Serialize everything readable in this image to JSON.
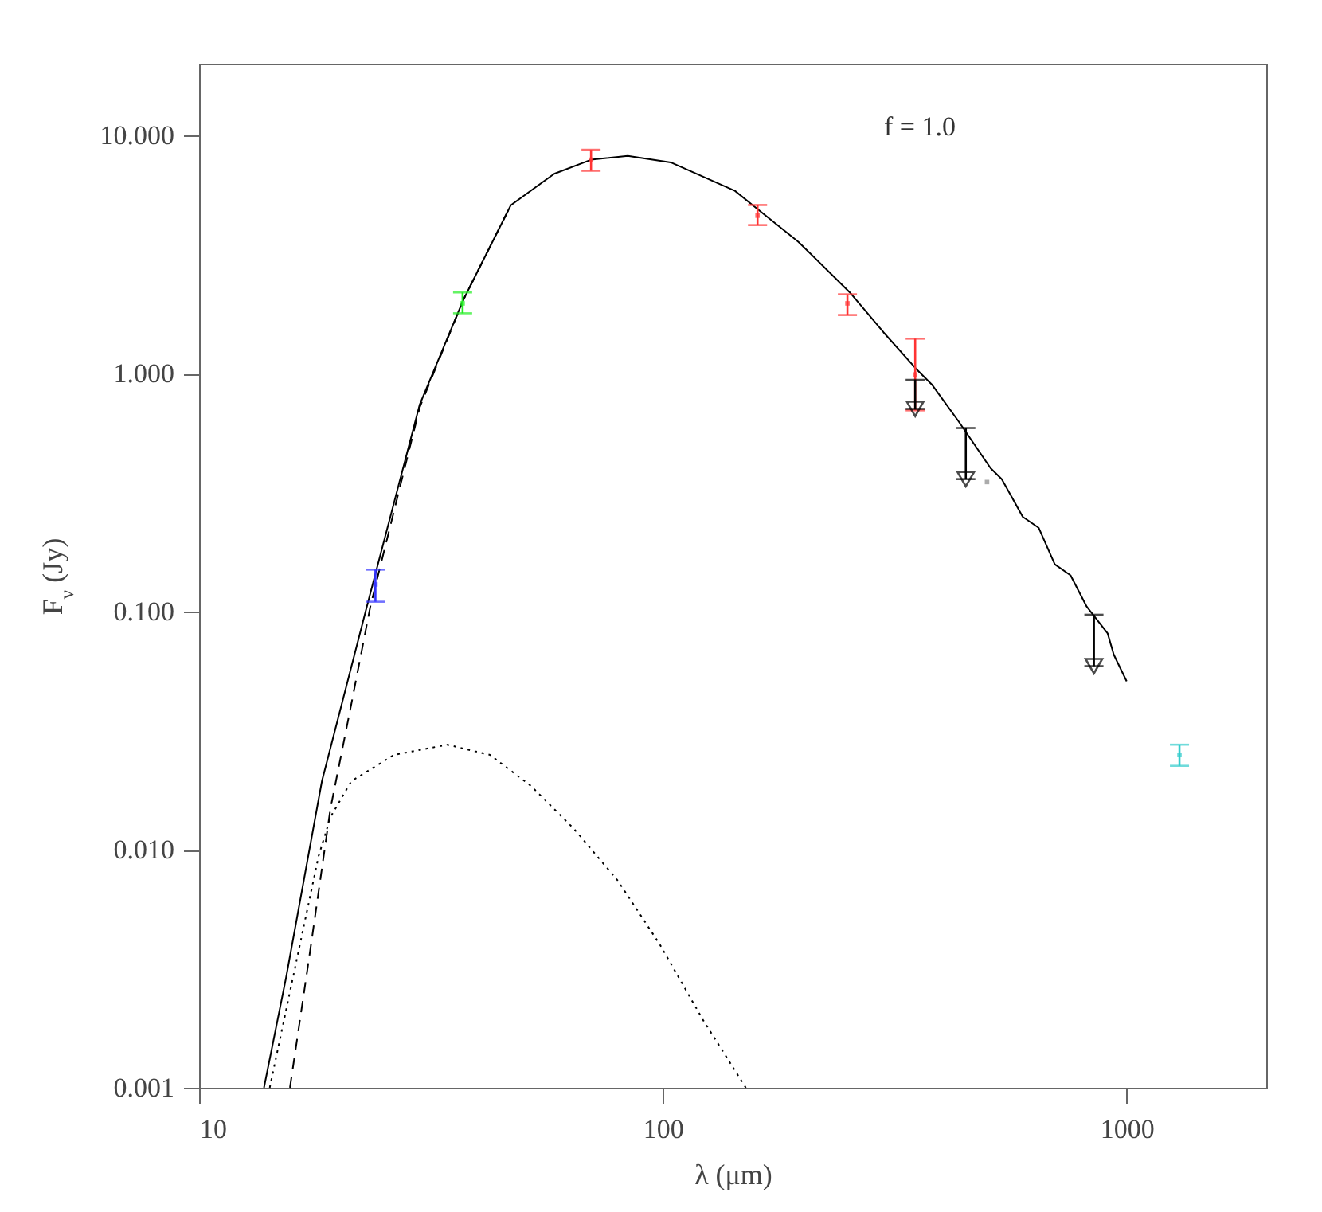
{
  "chart_data": {
    "type": "line",
    "xlabel": "λ (μm)",
    "ylabel": "F$_{ν}$ (Jy)",
    "log": "xy",
    "xlim": [
      10,
      2000
    ],
    "xticks": [
      10,
      100,
      1000
    ],
    "ylim": [
      0.001,
      20
    ],
    "yticks": [
      {
        "value": 10,
        "label": "10.000"
      },
      {
        "value": 1,
        "label": "1.000"
      },
      {
        "value": 0.1,
        "label": "0.100"
      },
      {
        "value": 0.01,
        "label": "0.010"
      },
      {
        "value": 0.001,
        "label": "0.001"
      }
    ],
    "annotations": [
      "f = 1.0"
    ],
    "series": [
      {
        "line_style": "solid",
        "color": "#000000",
        "x": [
          13.8,
          15.4,
          18.4,
          23.0,
          29.9,
          37.1,
          47.0,
          58.3,
          70,
          84,
          104,
          143,
          158,
          196,
          230,
          253,
          299,
          351,
          380,
          434,
          509,
          538,
          597,
          646,
          700,
          757,
          820,
          910,
          938,
          1000
        ],
        "values": [
          0.001,
          0.0029,
          0.0194,
          0.105,
          0.74,
          2.03,
          5.09,
          6.9,
          7.9,
          8.2,
          7.7,
          5.85,
          5.0,
          3.57,
          2.63,
          2.19,
          1.49,
          1.05,
          0.9,
          0.63,
          0.4,
          0.36,
          0.25,
          0.225,
          0.158,
          0.142,
          0.105,
          0.081,
          0.066,
          0.051
        ]
      },
      {
        "line_style": "dashed",
        "color": "#000000",
        "x": [
          15.7,
          17.3,
          19.2,
          21.3,
          23.4,
          29.9,
          37.1,
          47.0
        ],
        "values": [
          0.001,
          0.0036,
          0.0149,
          0.041,
          0.105,
          0.72,
          2.03,
          5.09
        ]
      },
      {
        "line_style": "dotted",
        "color": "#000000",
        "x": [
          14.2,
          18.1,
          19.2,
          21.3,
          26.3,
          34.3,
          42.4,
          52,
          64.4,
          80,
          98.5,
          122,
          151
        ],
        "values": [
          0.001,
          0.0094,
          0.0137,
          0.0194,
          0.025,
          0.0276,
          0.025,
          0.0185,
          0.0122,
          0.0074,
          0.004,
          0.00193,
          0.001
        ]
      },
      {
        "type": "scatter",
        "marker": "square",
        "color": "#3333ff",
        "x": [
          24
        ],
        "values": [
          0.13
        ],
        "errors": [
          [
            0.11,
            0.15
          ]
        ]
      },
      {
        "type": "scatter",
        "marker": "square",
        "color": "#22ee22",
        "x": [
          37
        ],
        "values": [
          1.97
        ],
        "errors": [
          [
            1.79,
            2.19
          ]
        ]
      },
      {
        "type": "scatter",
        "marker": "square",
        "color": "#ff3333",
        "x": [
          70,
          160,
          250,
          350
        ],
        "values": [
          7.9,
          4.6,
          1.97,
          0.99
        ],
        "errors": [
          [
            7.1,
            8.7
          ],
          [
            4.2,
            5.1
          ],
          [
            1.76,
            2.15
          ],
          [
            0.7,
            1.4
          ]
        ]
      },
      {
        "type": "scatter",
        "marker": "triangle",
        "color": "#000000",
        "x": [
          350,
          450,
          850
        ],
        "values": [
          0.71,
          0.36,
          0.059
        ],
        "errors": [
          [
            0.71,
            0.94
          ],
          [
            0.36,
            0.59
          ],
          [
            0.059,
            0.097
          ]
        ]
      },
      {
        "type": "scatter",
        "marker": "square",
        "color": "#888888",
        "x": [
          500
        ],
        "values": [
          0.35
        ]
      },
      {
        "type": "scatter",
        "marker": "square",
        "color": "#33cccc",
        "x": [
          1300
        ],
        "values": [
          0.025
        ],
        "errors": [
          [
            0.0225,
            0.0276
          ]
        ]
      }
    ]
  }
}
